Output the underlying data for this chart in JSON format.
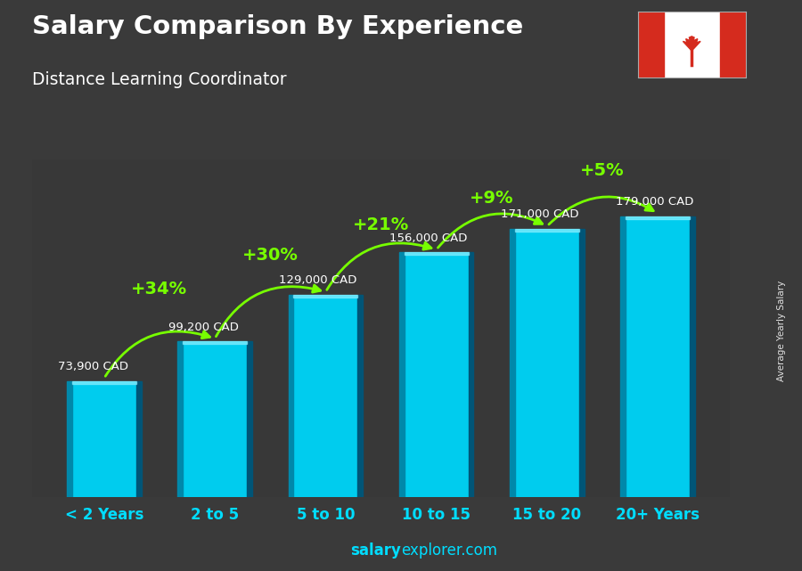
{
  "title": "Salary Comparison By Experience",
  "subtitle": "Distance Learning Coordinator",
  "categories": [
    "< 2 Years",
    "2 to 5",
    "5 to 10",
    "10 to 15",
    "15 to 20",
    "20+ Years"
  ],
  "values": [
    73900,
    99200,
    129000,
    156000,
    171000,
    179000
  ],
  "salary_labels": [
    "73,900 CAD",
    "99,200 CAD",
    "129,000 CAD",
    "156,000 CAD",
    "171,000 CAD",
    "179,000 CAD"
  ],
  "pct_labels": [
    "+34%",
    "+30%",
    "+21%",
    "+9%",
    "+5%"
  ],
  "bar_color": "#00CCEE",
  "pct_color": "#77FF00",
  "salary_label_color": "#FFFFFF",
  "title_color": "#FFFFFF",
  "subtitle_color": "#FFFFFF",
  "watermark_bold": "salary",
  "watermark_regular": "explorer.com",
  "side_label": "Average Yearly Salary",
  "ylim": [
    0,
    215000
  ],
  "figsize": [
    9.0,
    6.41
  ],
  "dpi": 100,
  "bg_color": "#3a3a3a"
}
